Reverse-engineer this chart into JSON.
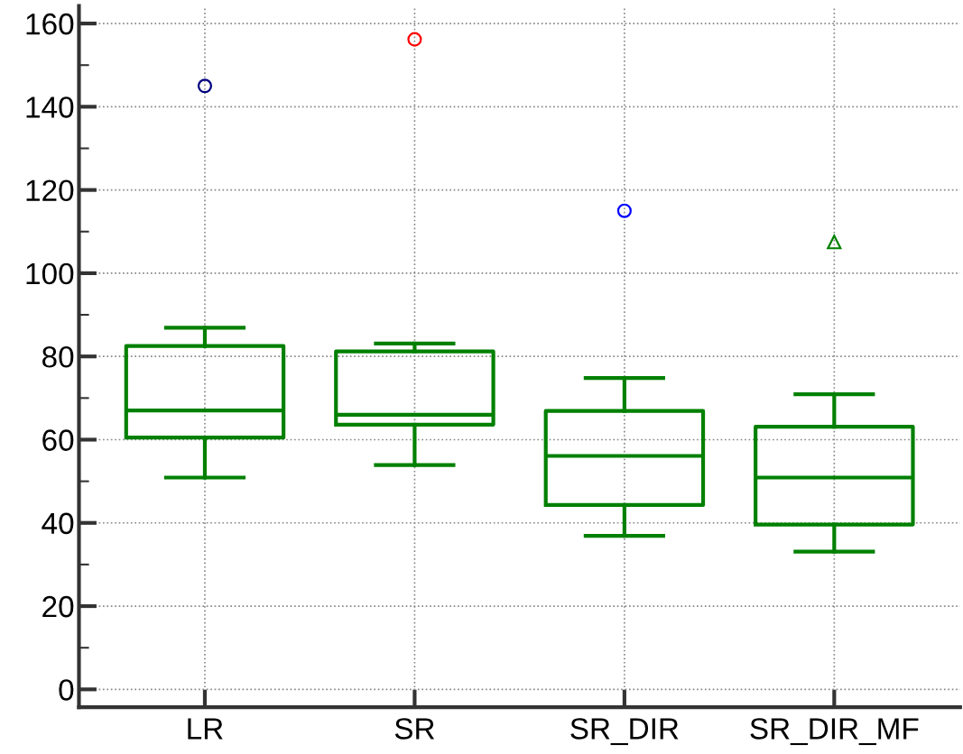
{
  "chart_data": {
    "type": "box",
    "categories": [
      "LR",
      "SR",
      "SR_DIR",
      "SR_DIR_MF"
    ],
    "boxes": [
      {
        "low": 50.9,
        "q1": 60.5,
        "median": 67.0,
        "q3": 82.5,
        "high": 86.9
      },
      {
        "low": 53.9,
        "q1": 63.6,
        "median": 66.0,
        "q3": 81.2,
        "high": 83.1
      },
      {
        "low": 36.9,
        "q1": 44.3,
        "median": 56.1,
        "q3": 66.9,
        "high": 74.8
      },
      {
        "low": 33.1,
        "q1": 39.6,
        "median": 50.9,
        "q3": 63.1,
        "high": 70.9
      }
    ],
    "color": "#008000",
    "series": [
      {
        "type": "scatter",
        "x": [
          "LR"
        ],
        "values": [
          145
        ],
        "color": "#000080",
        "marker": "circle"
      },
      {
        "type": "scatter",
        "x": [
          "SR"
        ],
        "values": [
          156.2
        ],
        "color": "#ff0000",
        "marker": "circle"
      },
      {
        "type": "scatter",
        "x": [
          "SR_DIR"
        ],
        "values": [
          115.0
        ],
        "color": "#0000ff",
        "marker": "circle"
      },
      {
        "type": "scatter",
        "x": [
          "SR_DIR_MF"
        ],
        "values": [
          107.5
        ],
        "color": "#008000",
        "marker": "triangle"
      }
    ],
    "ylim": [
      -4.3,
      164.2
    ],
    "yticks": [
      0,
      20,
      40,
      60,
      80,
      100,
      120,
      140,
      160
    ],
    "grid": true,
    "legend": false
  }
}
